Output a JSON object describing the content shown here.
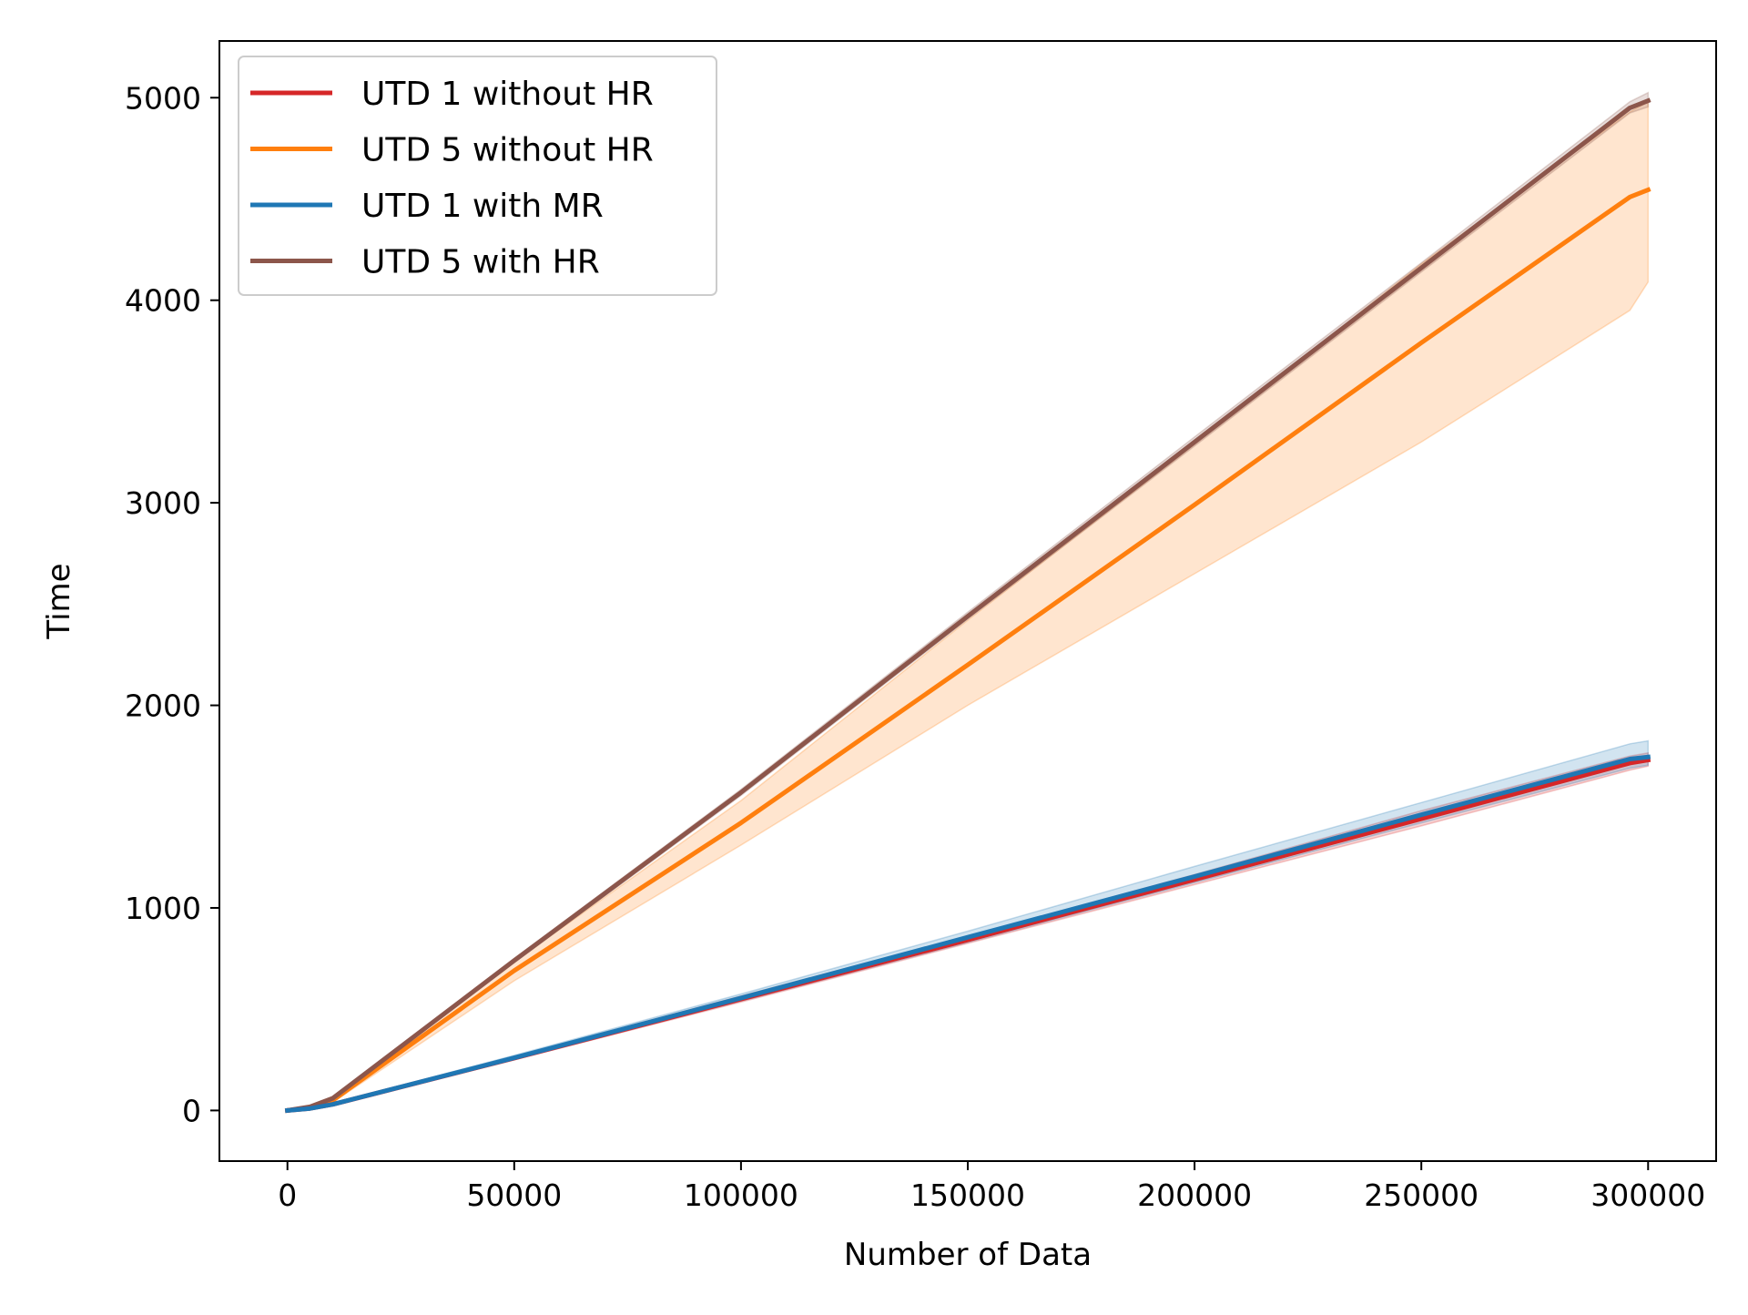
{
  "chart_data": {
    "type": "line",
    "title": "",
    "xlabel": "Number of Data",
    "ylabel": "Time",
    "xlim": [
      -15000,
      315000
    ],
    "ylim": [
      -250,
      5280
    ],
    "xticks": [
      0,
      50000,
      100000,
      150000,
      200000,
      250000,
      300000
    ],
    "xtick_labels": [
      "0",
      "50000",
      "100000",
      "150000",
      "200000",
      "250000",
      "300000"
    ],
    "yticks": [
      0,
      1000,
      2000,
      3000,
      4000,
      5000
    ],
    "ytick_labels": [
      "0",
      "1000",
      "2000",
      "3000",
      "4000",
      "5000"
    ],
    "grid": false,
    "legend_position": "top-left",
    "series": [
      {
        "name": "UTD 1 without HR",
        "color": "#d62728",
        "x": [
          0,
          5000,
          10000,
          50000,
          100000,
          150000,
          200000,
          250000,
          296000,
          300000
        ],
        "y": [
          0,
          10,
          30,
          258,
          550,
          842,
          1140,
          1440,
          1715,
          1730
        ],
        "band_lower": [
          0,
          8,
          26,
          250,
          535,
          825,
          1115,
          1405,
          1680,
          1700
        ],
        "band_upper": [
          0,
          12,
          34,
          266,
          565,
          860,
          1165,
          1480,
          1750,
          1765
        ]
      },
      {
        "name": "UTD 5 without HR",
        "color": "#ff7f0e",
        "x": [
          0,
          5000,
          10000,
          50000,
          100000,
          150000,
          200000,
          250000,
          296000,
          300000
        ],
        "y": [
          0,
          15,
          50,
          690,
          1420,
          2200,
          2990,
          3790,
          4510,
          4545
        ],
        "band_lower": [
          0,
          12,
          40,
          640,
          1310,
          2000,
          2650,
          3300,
          3950,
          4090
        ],
        "band_upper": [
          0,
          18,
          60,
          735,
          1530,
          2420,
          3290,
          4180,
          4930,
          4980
        ]
      },
      {
        "name": "UTD 1 with MR",
        "color": "#1f77b4",
        "x": [
          0,
          5000,
          10000,
          50000,
          100000,
          150000,
          200000,
          250000,
          296000,
          300000
        ],
        "y": [
          0,
          10,
          30,
          260,
          555,
          855,
          1155,
          1460,
          1735,
          1745
        ],
        "band_lower": [
          0,
          8,
          26,
          250,
          540,
          830,
          1125,
          1420,
          1690,
          1705
        ],
        "band_upper": [
          0,
          12,
          34,
          272,
          575,
          885,
          1205,
          1520,
          1810,
          1825
        ]
      },
      {
        "name": "UTD 5 with HR",
        "color": "#8c564b",
        "x": [
          0,
          5000,
          10000,
          50000,
          100000,
          150000,
          200000,
          250000,
          296000,
          300000
        ],
        "y": [
          0,
          18,
          60,
          740,
          1570,
          2440,
          3300,
          4160,
          4950,
          4985
        ],
        "band_lower": [
          0,
          15,
          52,
          730,
          1555,
          2425,
          3280,
          4140,
          4925,
          4955
        ],
        "band_upper": [
          0,
          21,
          68,
          750,
          1585,
          2460,
          3325,
          4185,
          4980,
          5025
        ]
      }
    ]
  }
}
